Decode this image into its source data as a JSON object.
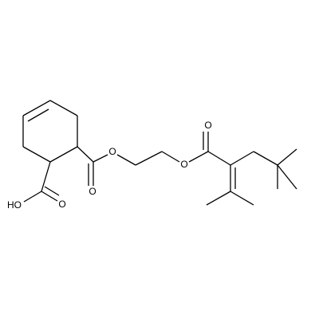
{
  "atoms": [
    {
      "label": "O"
    },
    {
      "label": "O"
    },
    {
      "label": "O"
    },
    {
      "label": "O"
    },
    {
      "label": "HO"
    },
    {
      "label": "O"
    }
  ]
}
